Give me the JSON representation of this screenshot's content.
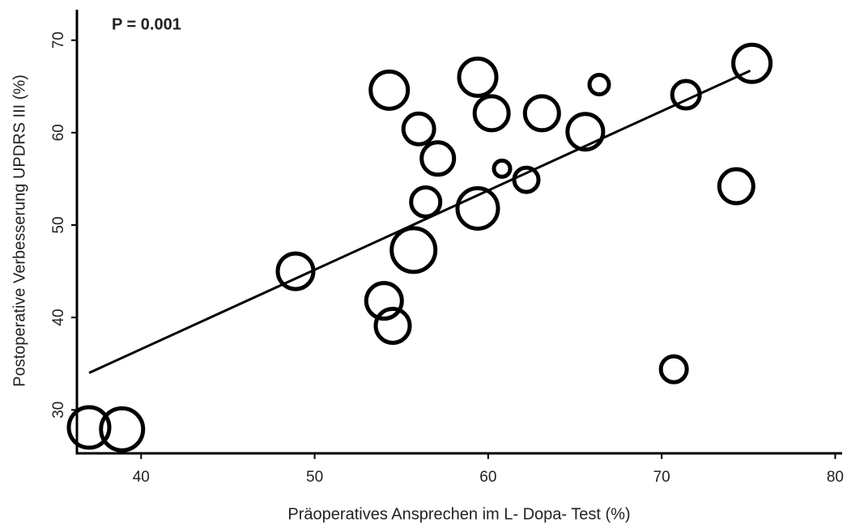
{
  "chart_data": {
    "type": "bubble",
    "annotation": "P = 0.001",
    "xlabel": "Präoperatives Ansprechen im L- Dopa- Test (%)",
    "ylabel": "Postoperative Verbesserung UPDRS III (%)",
    "x": [
      37.0,
      38.9,
      48.9,
      54.3,
      54.0,
      54.5,
      55.7,
      56.0,
      57.1,
      56.4,
      59.4,
      59.4,
      60.2,
      60.8,
      62.2,
      63.1,
      65.6,
      66.4,
      71.4,
      70.7,
      74.3,
      75.2
    ],
    "y": [
      28.1,
      27.9,
      45.0,
      64.6,
      41.8,
      39.1,
      47.3,
      60.4,
      57.2,
      52.5,
      66.0,
      51.8,
      62.1,
      56.1,
      54.9,
      62.1,
      60.1,
      65.2,
      64.1,
      34.4,
      54.2,
      67.5
    ],
    "sizes": [
      25,
      26,
      22,
      23,
      22,
      21,
      27,
      19,
      20,
      18,
      23,
      25,
      21,
      10,
      15,
      21,
      22,
      12,
      17,
      16,
      21,
      23
    ],
    "color": "#000000",
    "trendline": {
      "x": [
        37.0,
        75.1
      ],
      "y": [
        34.0,
        66.7
      ]
    },
    "xlim": [
      36.3,
      80.4
    ],
    "ylim": [
      25.3,
      73.3
    ],
    "xticks": [
      40,
      50,
      60,
      70,
      80
    ],
    "yticks": [
      30,
      40,
      50,
      60,
      70
    ]
  }
}
